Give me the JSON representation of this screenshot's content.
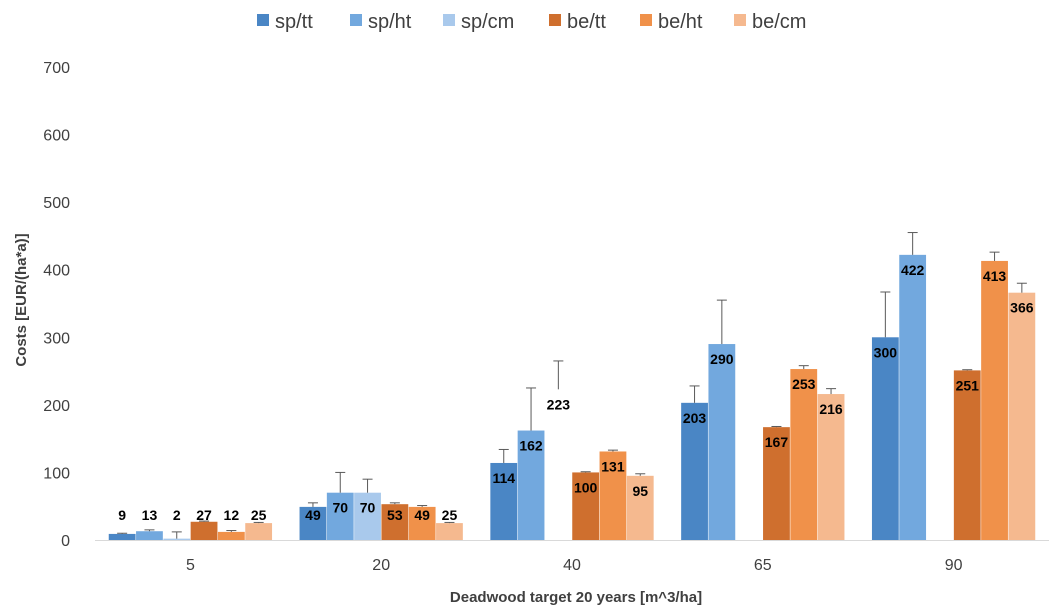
{
  "chart_data": {
    "type": "bar",
    "title": "",
    "xlabel": "Deadwood target 20 years [m^3/ha]",
    "ylabel": "Costs [EUR/(ha*a)]",
    "ylim": [
      0,
      700
    ],
    "yticks": [
      0,
      100,
      200,
      300,
      400,
      500,
      600,
      700
    ],
    "grid": false,
    "legend_position": "top",
    "categories": [
      "5",
      "20",
      "40",
      "65",
      "90"
    ],
    "series": [
      {
        "name": "sp/tt",
        "color": "#4a86c5",
        "values": [
          9,
          49,
          114,
          203,
          300
        ],
        "err_upper": [
          1,
          6,
          20,
          25,
          67
        ]
      },
      {
        "name": "sp/ht",
        "color": "#72a8de",
        "values": [
          13,
          70,
          162,
          290,
          422
        ],
        "err_upper": [
          2,
          30,
          63,
          65,
          33
        ]
      },
      {
        "name": "sp/cm",
        "color": "#a9c9ec",
        "values": [
          2,
          70,
          null,
          null,
          null
        ],
        "err_upper": [
          10,
          20,
          42,
          null,
          null
        ],
        "errbar_only": [
          null,
          null,
          223,
          null,
          null
        ]
      },
      {
        "name": "be/tt",
        "color": "#cf6f2e",
        "values": [
          27,
          53,
          100,
          167,
          251
        ],
        "err_upper": [
          1,
          2,
          1,
          1,
          1
        ]
      },
      {
        "name": "be/ht",
        "color": "#f0914a",
        "values": [
          12,
          49,
          131,
          253,
          413
        ],
        "err_upper": [
          2,
          2,
          2,
          5,
          13
        ]
      },
      {
        "name": "be/cm",
        "color": "#f5b98f",
        "values": [
          25,
          25,
          95,
          216,
          366
        ],
        "err_upper": [
          1,
          1,
          3,
          8,
          14
        ]
      }
    ],
    "data_labels": [
      [
        "9",
        "49",
        "114",
        "203",
        "300"
      ],
      [
        "13",
        "70",
        "162",
        "290",
        "422"
      ],
      [
        "2",
        "70",
        "223",
        "",
        ""
      ],
      [
        "27",
        "53",
        "100",
        "167",
        "251"
      ],
      [
        "12",
        "49",
        "131",
        "253",
        "413"
      ],
      [
        "25",
        "25",
        "95",
        "216",
        "366"
      ]
    ]
  }
}
